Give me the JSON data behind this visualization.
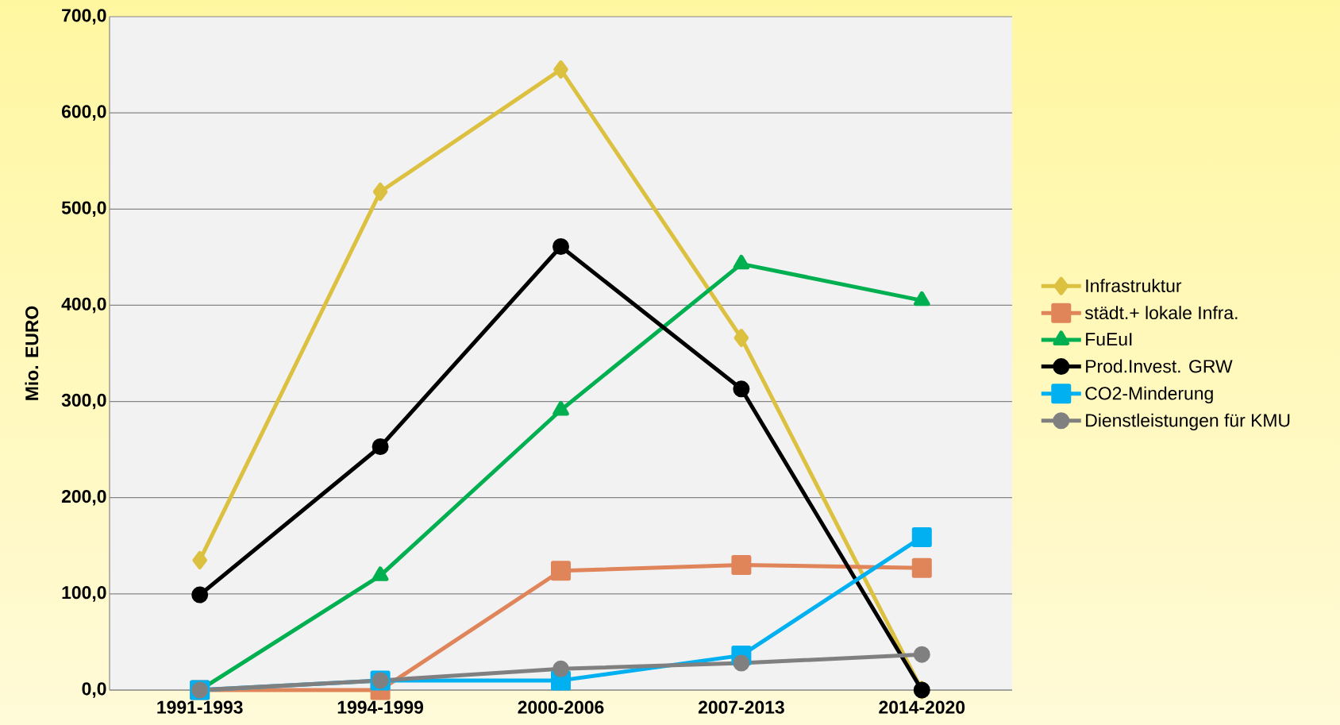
{
  "chart_data": {
    "type": "line",
    "ylabel": "Mio. EURO",
    "categories": [
      "1991-1993",
      "1994-1999",
      "2000-2006",
      "2007-2013",
      "2014-2020"
    ],
    "ylim": [
      0,
      700
    ],
    "yticks": [
      {
        "value": 0,
        "label": "0,0"
      },
      {
        "value": 100,
        "label": "100,0"
      },
      {
        "value": 200,
        "label": "200,0"
      },
      {
        "value": 300,
        "label": "300,0"
      },
      {
        "value": 400,
        "label": "400,0"
      },
      {
        "value": 500,
        "label": "500,0"
      },
      {
        "value": 600,
        "label": "600,0"
      },
      {
        "value": 700,
        "label": "700,0"
      }
    ],
    "grid": "y",
    "legend": "right",
    "series": [
      {
        "name": "Infrastruktur",
        "color": "#dcc040",
        "marker": "diamond",
        "values": [
          135,
          518,
          645,
          366,
          0
        ]
      },
      {
        "name": "städt.+ lokale Infra.",
        "color": "#e0845a",
        "marker": "square",
        "values": [
          0,
          0,
          124,
          130,
          127
        ]
      },
      {
        "name": "FuEuI",
        "color": "#00b050",
        "marker": "triangle",
        "values": [
          0,
          119,
          291,
          443,
          405
        ]
      },
      {
        "name": "Prod.Invest. GRW",
        "color": "#000000",
        "marker": "circle",
        "values": [
          99,
          253,
          461,
          313,
          0
        ]
      },
      {
        "name": "CO2-Minderung",
        "color": "#00b0f0",
        "marker": "square",
        "values": [
          0,
          10,
          10,
          36,
          159
        ]
      },
      {
        "name": "Dienstleistungen für KMU",
        "color": "#808080",
        "marker": "circle",
        "values": [
          0,
          10,
          22,
          28,
          37
        ]
      }
    ]
  }
}
